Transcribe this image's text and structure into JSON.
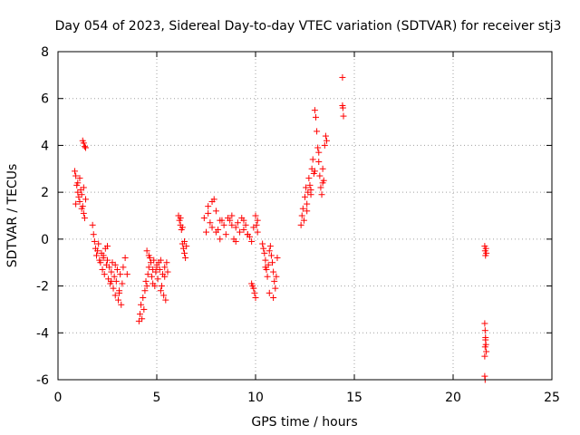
{
  "chart_data": {
    "type": "scatter",
    "title": "Day 054 of 2023, Sidereal Day-to-day VTEC variation (SDTVAR) for receiver stj3",
    "xlabel": "GPS time / hours",
    "ylabel": "SDTVAR / TECUs",
    "xlim": [
      0,
      25
    ],
    "ylim": [
      -6,
      8
    ],
    "xticks": [
      "0",
      "5",
      "10",
      "15",
      "20",
      "25"
    ],
    "yticks": [
      "-6",
      "-4",
      "-2",
      "0",
      "2",
      "4",
      "6",
      "8"
    ],
    "grid": true,
    "marker": "+",
    "marker_color": "#ff0000",
    "series": [
      {
        "name": "SDTVAR",
        "x": [
          0.85,
          0.9,
          0.95,
          1.0,
          1.05,
          1.1,
          1.15,
          1.2,
          1.25,
          1.3,
          1.35,
          1.4,
          0.9,
          1.0,
          1.1,
          1.2,
          1.3,
          1.25,
          1.3,
          1.35,
          1.4,
          1.75,
          1.8,
          1.85,
          1.9,
          1.95,
          2.0,
          2.05,
          2.1,
          2.15,
          2.2,
          2.25,
          2.3,
          2.35,
          2.4,
          2.45,
          2.5,
          2.55,
          2.6,
          2.65,
          2.7,
          2.75,
          2.8,
          2.85,
          2.9,
          2.95,
          3.0,
          3.05,
          3.1,
          3.15,
          3.2,
          3.25,
          3.3,
          3.4,
          3.5,
          2.3,
          2.5,
          2.7,
          2.9,
          3.1,
          4.1,
          4.15,
          4.2,
          4.25,
          4.3,
          4.35,
          4.4,
          4.45,
          4.5,
          4.55,
          4.6,
          4.65,
          4.7,
          4.75,
          4.8,
          4.85,
          4.9,
          4.95,
          5.0,
          5.05,
          5.1,
          5.15,
          5.2,
          5.25,
          5.3,
          5.35,
          5.4,
          5.45,
          5.5,
          5.55,
          4.5,
          4.6,
          4.8,
          5.0,
          5.2,
          5.4,
          6.1,
          6.15,
          6.2,
          6.25,
          6.3,
          6.35,
          6.4,
          6.45,
          6.5,
          6.2,
          6.3,
          6.4,
          7.4,
          7.5,
          7.6,
          7.7,
          7.8,
          7.9,
          8.0,
          8.1,
          8.2,
          8.3,
          8.4,
          8.5,
          8.6,
          8.7,
          8.8,
          8.9,
          9.0,
          9.1,
          9.2,
          9.3,
          9.4,
          9.5,
          9.6,
          9.7,
          9.8,
          9.9,
          10.0,
          10.1,
          7.6,
          7.8,
          8.0,
          8.2,
          8.8,
          9.0,
          9.4,
          9.6,
          9.8,
          9.85,
          9.9,
          9.95,
          10.0,
          10.05,
          10.1,
          10.35,
          10.4,
          10.45,
          10.5,
          10.55,
          10.6,
          10.65,
          10.7,
          10.75,
          10.8,
          10.85,
          10.9,
          10.95,
          11.0,
          11.05,
          11.1,
          10.5,
          10.7,
          10.9,
          12.3,
          12.35,
          12.4,
          12.45,
          12.5,
          12.55,
          12.6,
          12.65,
          12.7,
          12.75,
          12.8,
          12.85,
          12.9,
          12.95,
          13.0,
          13.05,
          13.1,
          13.15,
          13.2,
          13.25,
          13.3,
          13.35,
          13.4,
          13.45,
          13.5,
          13.55,
          13.6,
          12.6,
          12.8,
          13.0,
          13.2,
          13.4,
          14.4,
          14.4,
          14.42,
          14.45,
          21.6,
          21.62,
          21.64,
          21.66,
          21.68,
          21.6,
          21.62,
          21.64,
          21.66,
          21.68,
          21.6,
          21.62,
          21.64,
          21.6,
          21.62
        ],
        "y": [
          2.9,
          2.7,
          2.3,
          2.0,
          1.8,
          1.6,
          2.1,
          1.9,
          1.4,
          1.1,
          0.9,
          1.7,
          1.5,
          2.4,
          2.6,
          1.3,
          2.2,
          4.2,
          4.1,
          3.95,
          3.9,
          0.6,
          0.2,
          -0.1,
          -0.4,
          -0.7,
          -0.5,
          -0.2,
          -0.9,
          -1.0,
          -0.6,
          -1.3,
          -0.8,
          -1.5,
          -0.4,
          -1.1,
          -0.3,
          -1.7,
          -1.2,
          -1.9,
          -1.4,
          -1.0,
          -2.1,
          -1.6,
          -2.4,
          -1.8,
          -1.3,
          -2.6,
          -2.2,
          -1.5,
          -2.8,
          -1.9,
          -1.2,
          -0.8,
          -1.5,
          -0.7,
          -0.9,
          -1.8,
          -1.1,
          -2.3,
          -3.5,
          -3.2,
          -2.8,
          -3.4,
          -2.5,
          -3.0,
          -2.2,
          -1.8,
          -2.0,
          -1.5,
          -1.2,
          -0.8,
          -1.0,
          -1.6,
          -1.3,
          -0.9,
          -2.0,
          -1.4,
          -1.1,
          -1.7,
          -1.0,
          -1.3,
          -0.9,
          -2.0,
          -1.5,
          -2.4,
          -1.2,
          -2.6,
          -1.0,
          -1.4,
          -0.5,
          -0.7,
          -1.9,
          -1.2,
          -2.2,
          -1.6,
          1.0,
          0.8,
          0.6,
          0.4,
          -0.2,
          -0.4,
          -0.6,
          -0.8,
          -0.3,
          0.9,
          0.5,
          -0.1,
          0.9,
          0.3,
          1.4,
          0.7,
          1.6,
          1.7,
          1.2,
          0.4,
          0.0,
          0.8,
          0.6,
          0.2,
          0.9,
          0.8,
          1.0,
          0.0,
          -0.1,
          0.7,
          0.3,
          0.9,
          0.8,
          0.6,
          0.2,
          0.1,
          -0.1,
          0.5,
          1.0,
          0.8,
          1.1,
          0.5,
          0.3,
          0.8,
          0.6,
          0.5,
          0.4,
          0.2,
          -1.9,
          -2.0,
          -2.1,
          -2.3,
          -2.5,
          0.6,
          0.3,
          -0.2,
          -0.4,
          -0.6,
          -0.9,
          -1.3,
          -1.6,
          -1.1,
          -0.5,
          -0.3,
          -0.7,
          -1.0,
          -1.4,
          -1.8,
          -2.1,
          -1.6,
          -0.8,
          -1.2,
          -2.3,
          -2.5,
          0.6,
          1.0,
          1.3,
          0.8,
          1.8,
          2.2,
          1.5,
          2.0,
          2.6,
          2.3,
          1.9,
          3.0,
          3.4,
          2.8,
          5.5,
          5.2,
          4.6,
          3.9,
          3.3,
          2.7,
          2.2,
          1.9,
          3.0,
          2.5,
          4.0,
          4.4,
          4.2,
          1.2,
          2.1,
          2.9,
          3.7,
          2.4,
          6.9,
          5.7,
          5.6,
          5.25,
          -0.3,
          -0.5,
          -0.7,
          -0.4,
          -0.6,
          -3.6,
          -3.9,
          -4.2,
          -4.5,
          -4.8,
          -5.0,
          -4.6,
          -4.3,
          -5.85,
          -6.0
        ]
      }
    ]
  }
}
